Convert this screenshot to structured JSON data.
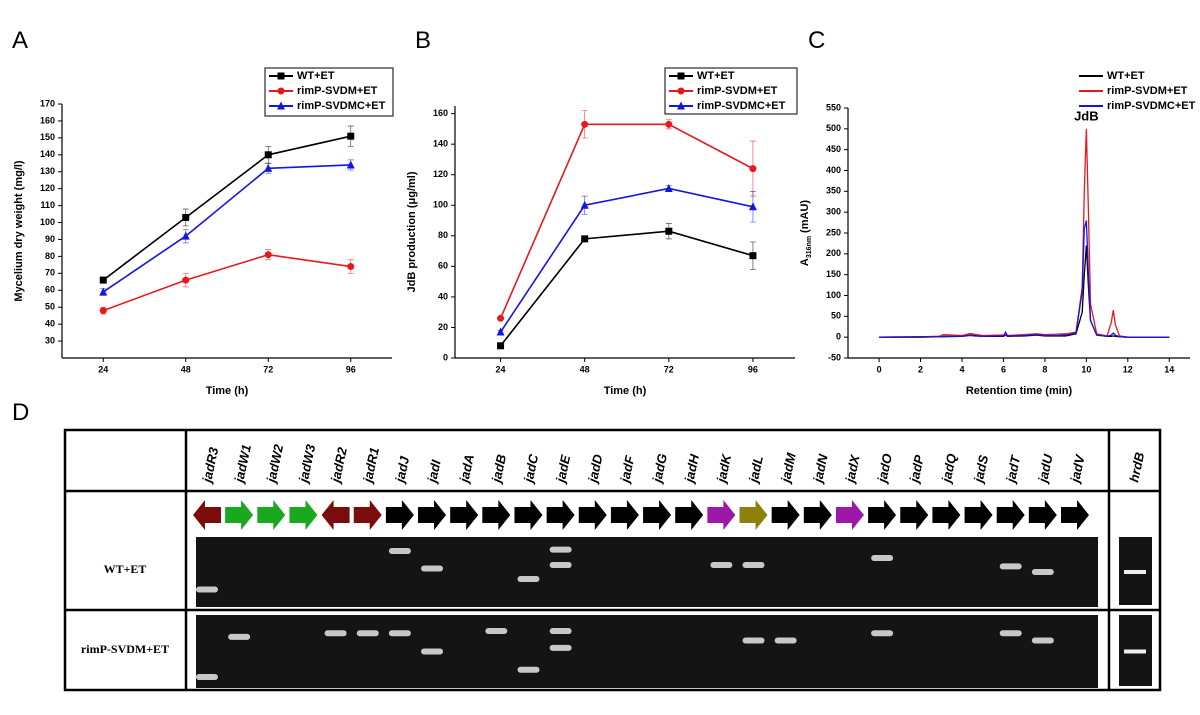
{
  "panel_labels": [
    "A",
    "B",
    "C",
    "D"
  ],
  "chart_data": [
    {
      "type": "line",
      "xlabel": "Time (h)",
      "ylabel": "Mycelium dry weight (mg/l)",
      "x": [
        24,
        48,
        72,
        96
      ],
      "xlim": [
        12,
        108
      ],
      "xticks": [
        24,
        48,
        72,
        96
      ],
      "ylim": [
        20,
        170
      ],
      "yticks": [
        30,
        40,
        50,
        60,
        70,
        80,
        90,
        100,
        110,
        120,
        130,
        140,
        150,
        160,
        170
      ],
      "legend": "top-right",
      "legend_box": true,
      "series": [
        {
          "name": "WT+ET",
          "color": "#000000",
          "marker": "square",
          "values": [
            66,
            103,
            140,
            151
          ],
          "errors": [
            1.5,
            5,
            5,
            6
          ]
        },
        {
          "name": "rimP-SVDM+ET",
          "color": "#e8191c",
          "marker": "circle",
          "values": [
            48,
            66,
            81,
            74
          ],
          "errors": [
            2,
            4,
            3,
            4
          ]
        },
        {
          "name": "rimP-SVDMC+ET",
          "color": "#1515e0",
          "marker": "triangle",
          "values": [
            59,
            92,
            132,
            134
          ],
          "errors": [
            2,
            4,
            3,
            3
          ]
        }
      ]
    },
    {
      "type": "line",
      "xlabel": "Time (h)",
      "ylabel": "JdB production (μg/ml)",
      "x": [
        24,
        48,
        72,
        96
      ],
      "xlim": [
        11,
        108
      ],
      "xticks": [
        24,
        48,
        72,
        96
      ],
      "ylim": [
        0,
        165
      ],
      "yticks": [
        0,
        20,
        40,
        60,
        80,
        100,
        120,
        140,
        160
      ],
      "legend": "top-right",
      "legend_box": true,
      "series": [
        {
          "name": "WT+ET",
          "color": "#000000",
          "marker": "square",
          "values": [
            8,
            78,
            83,
            67
          ],
          "errors": [
            1,
            1,
            5,
            9
          ]
        },
        {
          "name": "rimP-SVDM+ET",
          "color": "#e8191c",
          "marker": "circle",
          "values": [
            26,
            153,
            153,
            124
          ],
          "errors": [
            1,
            9,
            3,
            18
          ]
        },
        {
          "name": "rimP-SVDMC+ET",
          "color": "#1515e0",
          "marker": "triangle",
          "values": [
            17,
            100,
            111,
            99
          ],
          "errors": [
            1,
            6,
            2,
            10
          ]
        }
      ]
    },
    {
      "type": "line",
      "xlabel": "Retention time (min)",
      "ylabel": "A",
      "ylabel_subscript": "316nm",
      "ylabel_unit": "(mAU)",
      "annotation": {
        "text": "JdB",
        "x": 10,
        "y": 520
      },
      "x": [
        0,
        2,
        2.9,
        3.1,
        4,
        4.4,
        4.6,
        5,
        6,
        6.1,
        6.2,
        7,
        7.6,
        8,
        8.5,
        9,
        9.5,
        9.8,
        9.9,
        10,
        10.1,
        10.2,
        10.5,
        11,
        11.2,
        11.3,
        11.4,
        11.6,
        12,
        14
      ],
      "xlim": [
        -1.5,
        15
      ],
      "xticks": [
        0,
        2,
        4,
        6,
        8,
        10,
        12,
        14
      ],
      "ylim": [
        -50,
        550
      ],
      "yticks": [
        -50,
        0,
        50,
        100,
        150,
        200,
        250,
        300,
        350,
        400,
        450,
        500,
        550
      ],
      "legend": "top-right",
      "legend_box": false,
      "series": [
        {
          "name": "WT+ET",
          "color": "#000000",
          "values": [
            0,
            0,
            1,
            1,
            2,
            5,
            4,
            2,
            2,
            5,
            2,
            3,
            5,
            3,
            3,
            3,
            8,
            60,
            150,
            220,
            120,
            40,
            5,
            2,
            2,
            3,
            2,
            1,
            0,
            0
          ]
        },
        {
          "name": "rimP-SVDM+ET",
          "color": "#e8191c",
          "values": [
            0,
            1,
            2,
            6,
            4,
            9,
            7,
            4,
            5,
            6,
            4,
            6,
            8,
            6,
            7,
            8,
            12,
            120,
            350,
            500,
            300,
            80,
            8,
            3,
            35,
            65,
            30,
            3,
            0,
            0
          ]
        },
        {
          "name": "rimP-SVDMC+ET",
          "color": "#1515e0",
          "values": [
            0,
            1,
            1,
            2,
            2,
            4,
            3,
            2,
            3,
            12,
            3,
            4,
            6,
            4,
            4,
            5,
            10,
            110,
            260,
            280,
            150,
            40,
            5,
            2,
            5,
            10,
            5,
            1,
            0,
            0
          ]
        }
      ]
    }
  ],
  "gel": {
    "genes": [
      "jadR3",
      "jadW1",
      "jadW2",
      "jadW3",
      "jadR2",
      "jadR1",
      "jadJ",
      "jadI",
      "jadA",
      "jadB",
      "jadC",
      "jadE",
      "jadD",
      "jadF",
      "jadG",
      "jadH",
      "jadK",
      "jadL",
      "jadM",
      "jadN",
      "jadX",
      "jadO",
      "jadP",
      "jadQ",
      "jadS",
      "jadT",
      "jadU",
      "jadV"
    ],
    "rows": [
      "WT+ET",
      "rimP-SVDM+ET"
    ],
    "control": "hrdB"
  }
}
